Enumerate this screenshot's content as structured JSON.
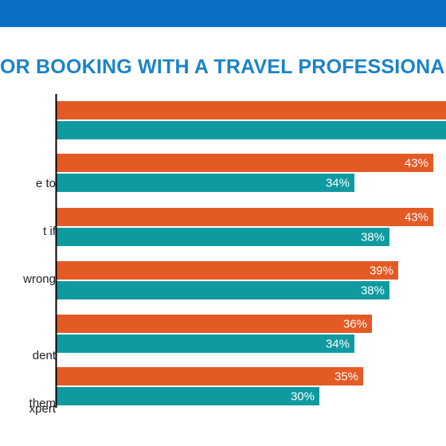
{
  "title": "OR BOOKING WITH A TRAVEL PROFESSIONAL",
  "colors": {
    "series_1": "#e35a24",
    "series_2": "#0f9aa0",
    "header": "#0a6fc2",
    "title": "#1b83c9"
  },
  "categories": [
    {
      "lines": [
        ""
      ]
    },
    {
      "lines": [
        "e to",
        "t if",
        "wrong"
      ]
    },
    {
      "lines": [
        ""
      ]
    },
    {
      "lines": [
        ""
      ]
    },
    {
      "lines": [
        "dent",
        " them"
      ]
    },
    {
      "lines": [
        "xpert"
      ]
    }
  ],
  "chart_data": {
    "type": "bar",
    "orientation": "horizontal",
    "categories": [
      "",
      "e to t if wrong",
      "",
      "",
      "dent them",
      "xpert"
    ],
    "series": [
      {
        "values": [
          null,
          43,
          43,
          39,
          36,
          35
        ],
        "labels": [
          "",
          "43%",
          "43%",
          "39%",
          "36%",
          "35%"
        ]
      },
      {
        "values": [
          null,
          34,
          38,
          38,
          34,
          30
        ],
        "labels": [
          "",
          "34%",
          "38%",
          "38%",
          "34%",
          "30%"
        ]
      }
    ]
  }
}
